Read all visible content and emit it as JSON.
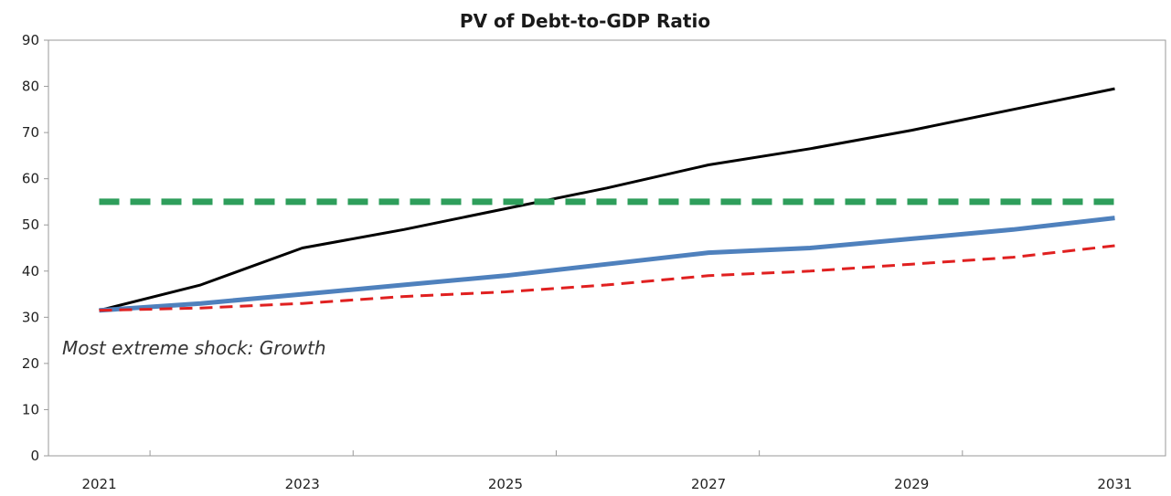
{
  "chart_data": {
    "type": "line",
    "title": "PV of Debt-to-GDP Ratio",
    "xlabel": "",
    "ylabel": "",
    "x": [
      2021,
      2022,
      2023,
      2024,
      2025,
      2026,
      2027,
      2028,
      2029,
      2030,
      2031
    ],
    "x_tick_labels": [
      "2021",
      "2023",
      "2025",
      "2027",
      "2029",
      "2031"
    ],
    "y_tick_labels": [
      "0",
      "10",
      "20",
      "30",
      "40",
      "50",
      "60",
      "70",
      "80",
      "90"
    ],
    "xlim": [
      2020.5,
      2031.5
    ],
    "ylim": [
      0,
      90
    ],
    "grid": false,
    "annotation": "Most extreme shock: Growth",
    "series": [
      {
        "color": "#000000",
        "style": "solid",
        "values": [
          31.5,
          37,
          45,
          49,
          53.5,
          58,
          63,
          66.5,
          70.5,
          75,
          79.5
        ]
      },
      {
        "color": "#4f81bd",
        "style": "solid-thick",
        "values": [
          31.5,
          33,
          35,
          37,
          39,
          41.5,
          44,
          45,
          47,
          49,
          51.5
        ]
      },
      {
        "color": "#e02020",
        "style": "dashed",
        "values": [
          31.5,
          32,
          33,
          34.5,
          35.5,
          37,
          39,
          40,
          41.5,
          43,
          45.5
        ]
      },
      {
        "color": "#2e9e5b",
        "style": "dashed-thick",
        "values": [
          55,
          55,
          55,
          55,
          55,
          55,
          55,
          55,
          55,
          55,
          55
        ]
      }
    ]
  }
}
